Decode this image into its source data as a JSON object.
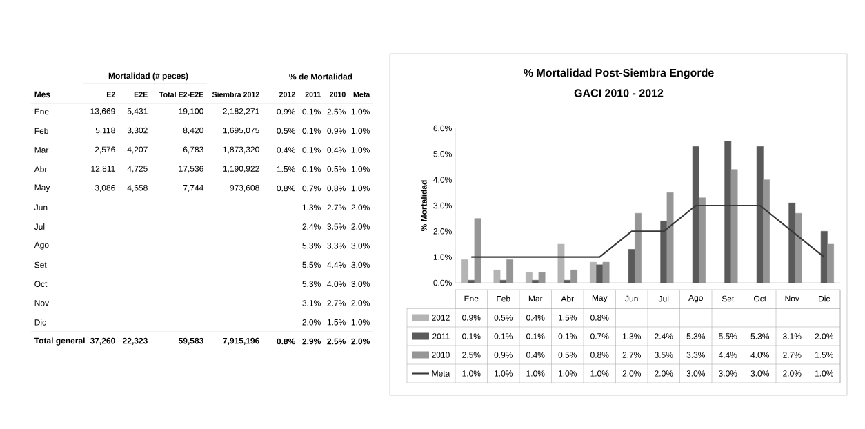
{
  "chart_data": [
    {
      "type": "other",
      "xlabel": "Mes",
      "annotations": [
        "Mortalidad (# peces)",
        "% de Mortalidad"
      ],
      "categories": [
        "Ene",
        "Feb",
        "Mar",
        "Abr",
        "May",
        "Jun",
        "Jul",
        "Ago",
        "Set",
        "Oct",
        "Nov",
        "Dic",
        "Total general"
      ],
      "series": [
        {
          "name": "E2",
          "values": [
            13669,
            5118,
            2576,
            12811,
            3086,
            null,
            null,
            null,
            null,
            null,
            null,
            null,
            37260
          ],
          "value_labels": [
            "13,669",
            "5,118",
            "2,576",
            "12,811",
            "3,086",
            null,
            null,
            null,
            null,
            null,
            null,
            null,
            "37,260"
          ]
        },
        {
          "name": "E2E",
          "values": [
            5431,
            3302,
            4207,
            4725,
            4658,
            null,
            null,
            null,
            null,
            null,
            null,
            null,
            22323
          ],
          "value_labels": [
            "5,431",
            "3,302",
            "4,207",
            "4,725",
            "4,658",
            null,
            null,
            null,
            null,
            null,
            null,
            null,
            "22,323"
          ]
        },
        {
          "name": "Total E2-E2E",
          "values": [
            19100,
            8420,
            6783,
            17536,
            7744,
            null,
            null,
            null,
            null,
            null,
            null,
            null,
            59583
          ],
          "value_labels": [
            "19,100",
            "8,420",
            "6,783",
            "17,536",
            "7,744",
            null,
            null,
            null,
            null,
            null,
            null,
            null,
            "59,583"
          ]
        },
        {
          "name": "Siembra 2012",
          "values": [
            2182271,
            1695075,
            1873320,
            1190922,
            973608,
            null,
            null,
            null,
            null,
            null,
            null,
            null,
            7915196
          ],
          "value_labels": [
            "2,182,271",
            "1,695,075",
            "1,873,320",
            "1,190,922",
            "973,608",
            null,
            null,
            null,
            null,
            null,
            null,
            null,
            "7,915,196"
          ]
        },
        {
          "name": "2012",
          "values": [
            0.9,
            0.5,
            0.4,
            1.5,
            0.8,
            null,
            null,
            null,
            null,
            null,
            null,
            null,
            0.8
          ],
          "value_labels": [
            "0.9%",
            "0.5%",
            "0.4%",
            "1.5%",
            "0.8%",
            null,
            null,
            null,
            null,
            null,
            null,
            null,
            "0.8%"
          ]
        },
        {
          "name": "2011",
          "values": [
            0.1,
            0.1,
            0.1,
            0.1,
            0.7,
            1.3,
            2.4,
            5.3,
            5.5,
            5.3,
            3.1,
            2.0,
            2.9
          ],
          "value_labels": [
            "0.1%",
            "0.1%",
            "0.1%",
            "0.1%",
            "0.7%",
            "1.3%",
            "2.4%",
            "5.3%",
            "5.5%",
            "5.3%",
            "3.1%",
            "2.0%",
            "2.9%"
          ]
        },
        {
          "name": "2010",
          "values": [
            2.5,
            0.9,
            0.4,
            0.5,
            0.8,
            2.7,
            3.5,
            3.3,
            4.4,
            4.0,
            2.7,
            1.5,
            2.5
          ],
          "value_labels": [
            "2.5%",
            "0.9%",
            "0.4%",
            "0.5%",
            "0.8%",
            "2.7%",
            "3.5%",
            "3.3%",
            "4.4%",
            "4.0%",
            "2.7%",
            "1.5%",
            "2.5%"
          ]
        },
        {
          "name": "Meta",
          "values": [
            1.0,
            1.0,
            1.0,
            1.0,
            1.0,
            2.0,
            2.0,
            3.0,
            3.0,
            3.0,
            2.0,
            1.0,
            2.0
          ],
          "value_labels": [
            "1.0%",
            "1.0%",
            "1.0%",
            "1.0%",
            "1.0%",
            "2.0%",
            "2.0%",
            "3.0%",
            "3.0%",
            "3.0%",
            "2.0%",
            "1.0%",
            "2.0%"
          ]
        }
      ]
    },
    {
      "type": "bar",
      "title": "% Mortalidad Post-Siembra Engorde",
      "subtitle": "GACI 2010 - 2012",
      "ylabel": "% Mortalidad",
      "categories": [
        "Ene",
        "Feb",
        "Mar",
        "Abr",
        "May",
        "Jun",
        "Jul",
        "Ago",
        "Set",
        "Oct",
        "Nov",
        "Dic"
      ],
      "ylim": [
        0,
        6
      ],
      "yticks": [
        {
          "value": 0,
          "label": "0.0%"
        },
        {
          "value": 1,
          "label": "1.0%"
        },
        {
          "value": 2,
          "label": "2.0%"
        },
        {
          "value": 3,
          "label": "3.0%"
        },
        {
          "value": 4,
          "label": "4.0%"
        },
        {
          "value": 5,
          "label": "5.0%"
        },
        {
          "value": 6,
          "label": "6.0%"
        }
      ],
      "legend": "bottom",
      "series": [
        {
          "name": "2012",
          "color": "#b4b4b4",
          "values": [
            0.9,
            0.5,
            0.4,
            1.5,
            0.8,
            null,
            null,
            null,
            null,
            null,
            null,
            null
          ],
          "value_labels": [
            "0.9%",
            "0.5%",
            "0.4%",
            "1.5%",
            "0.8%",
            null,
            null,
            null,
            null,
            null,
            null,
            null
          ]
        },
        {
          "name": "2011",
          "color": "#5a5a5a",
          "values": [
            0.1,
            0.1,
            0.1,
            0.1,
            0.7,
            1.3,
            2.4,
            5.3,
            5.5,
            5.3,
            3.1,
            2.0
          ],
          "value_labels": [
            "0.1%",
            "0.1%",
            "0.1%",
            "0.1%",
            "0.7%",
            "1.3%",
            "2.4%",
            "5.3%",
            "5.5%",
            "5.3%",
            "3.1%",
            "2.0%"
          ]
        },
        {
          "name": "2010",
          "color": "#969696",
          "values": [
            2.5,
            0.9,
            0.4,
            0.5,
            0.8,
            2.7,
            3.5,
            3.3,
            4.4,
            4.0,
            2.7,
            1.5
          ],
          "value_labels": [
            "2.5%",
            "0.9%",
            "0.4%",
            "0.5%",
            "0.8%",
            "2.7%",
            "3.5%",
            "3.3%",
            "4.4%",
            "4.0%",
            "2.7%",
            "1.5%"
          ]
        },
        {
          "name": "Meta",
          "type": "line",
          "color": "#383838",
          "values": [
            1.0,
            1.0,
            1.0,
            1.0,
            1.0,
            2.0,
            2.0,
            3.0,
            3.0,
            3.0,
            2.0,
            1.0
          ],
          "value_labels": [
            "1.0%",
            "1.0%",
            "1.0%",
            "1.0%",
            "1.0%",
            "2.0%",
            "2.0%",
            "3.0%",
            "3.0%",
            "3.0%",
            "2.0%",
            "1.0%"
          ]
        }
      ]
    }
  ]
}
